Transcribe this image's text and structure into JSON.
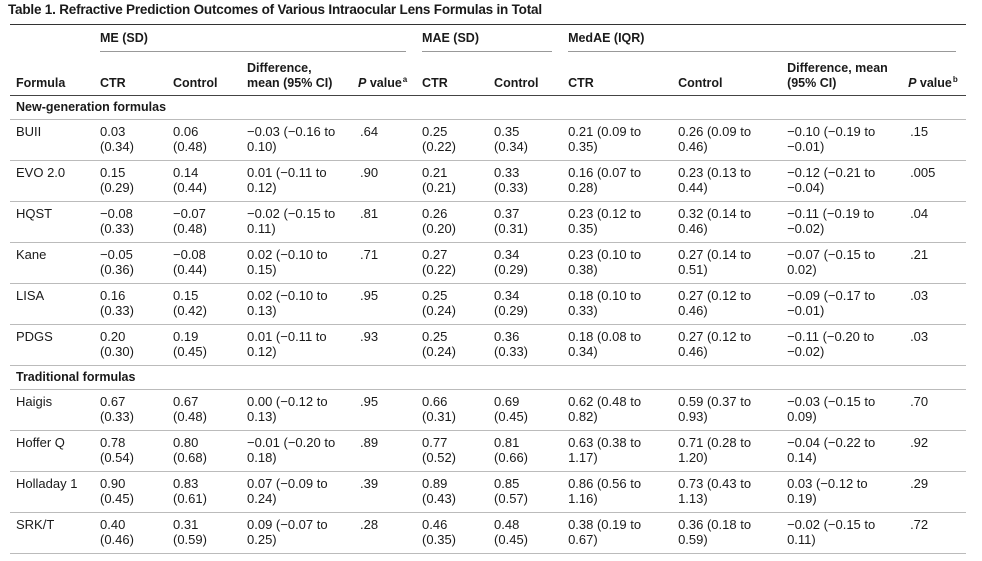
{
  "title": "Table 1. Refractive Prediction Outcomes of Various Intraocular Lens Formulas in Total",
  "table": {
    "groups": [
      "ME (SD)",
      "MAE (SD)",
      "MedAE (IQR)"
    ],
    "columns": [
      {
        "text": "Formula"
      },
      {
        "text": "CTR"
      },
      {
        "text": "Control"
      },
      {
        "text": "Difference, mean (95% CI)"
      },
      {
        "italic": "P",
        "text": "value",
        "sup": "a"
      },
      {
        "text": "CTR"
      },
      {
        "text": "Control"
      },
      {
        "text": "CTR"
      },
      {
        "text": "Control"
      },
      {
        "text": "Difference, mean (95% CI)"
      },
      {
        "italic": "P",
        "text": "value",
        "sup": "b"
      }
    ],
    "sections": [
      {
        "name": "New-generation formulas",
        "rows": [
          [
            "BUII",
            "0.03 (0.34)",
            "0.06 (0.48)",
            "−0.03 (−0.16 to 0.10)",
            ".64",
            "0.25 (0.22)",
            "0.35 (0.34)",
            "0.21 (0.09 to 0.35)",
            "0.26 (0.09 to 0.46)",
            "−0.10 (−0.19 to −0.01)",
            ".15"
          ],
          [
            "EVO 2.0",
            "0.15 (0.29)",
            "0.14 (0.44)",
            "0.01 (−0.11 to 0.12)",
            ".90",
            "0.21 (0.21)",
            "0.33 (0.33)",
            "0.16 (0.07 to 0.28)",
            "0.23 (0.13 to 0.44)",
            "−0.12 (−0.21 to −0.04)",
            ".005"
          ],
          [
            "HQST",
            "−0.08 (0.33)",
            "−0.07 (0.48)",
            "−0.02 (−0.15 to 0.11)",
            ".81",
            "0.26 (0.20)",
            "0.37 (0.31)",
            "0.23 (0.12 to 0.35)",
            "0.32 (0.14 to 0.46)",
            "−0.11 (−0.19 to −0.02)",
            ".04"
          ],
          [
            "Kane",
            "−0.05 (0.36)",
            "−0.08 (0.44)",
            "0.02 (−0.10 to 0.15)",
            ".71",
            "0.27 (0.22)",
            "0.34 (0.29)",
            "0.23 (0.10 to 0.38)",
            "0.27 (0.14 to 0.51)",
            "−0.07 (−0.15 to 0.02)",
            ".21"
          ],
          [
            "LISA",
            "0.16 (0.33)",
            "0.15 (0.42)",
            "0.02 (−0.10 to 0.13)",
            ".95",
            "0.25 (0.24)",
            "0.34 (0.29)",
            "0.18 (0.10 to 0.33)",
            "0.27 (0.12 to 0.46)",
            "−0.09 (−0.17 to −0.01)",
            ".03"
          ],
          [
            "PDGS",
            "0.20 (0.30)",
            "0.19 (0.45)",
            "0.01 (−0.11 to 0.12)",
            ".93",
            "0.25 (0.24)",
            "0.36 (0.33)",
            "0.18 (0.08 to 0.34)",
            "0.27 (0.12 to 0.46)",
            "−0.11 (−0.20 to −0.02)",
            ".03"
          ]
        ]
      },
      {
        "name": "Traditional formulas",
        "rows": [
          [
            "Haigis",
            "0.67 (0.33)",
            "0.67 (0.48)",
            "0.00 (−0.12 to 0.13)",
            ".95",
            "0.66 (0.31)",
            "0.69 (0.45)",
            "0.62 (0.48 to 0.82)",
            "0.59 (0.37 to 0.93)",
            "−0.03 (−0.15 to 0.09)",
            ".70"
          ],
          [
            "Hoffer Q",
            "0.78 (0.54)",
            "0.80 (0.68)",
            "−0.01 (−0.20 to 0.18)",
            ".89",
            "0.77 (0.52)",
            "0.81 (0.66)",
            "0.63 (0.38 to 1.17)",
            "0.71 (0.28 to 1.20)",
            "−0.04 (−0.22 to 0.14)",
            ".92"
          ],
          [
            "Holladay 1",
            "0.90 (0.45)",
            "0.83 (0.61)",
            "0.07 (−0.09 to 0.24)",
            ".39",
            "0.89 (0.43)",
            "0.85 (0.57)",
            "0.86 (0.56 to 1.16)",
            "0.73 (0.43 to 1.13)",
            "0.03 (−0.12 to 0.19)",
            ".29"
          ],
          [
            "SRK/T",
            "0.40 (0.46)",
            "0.31 (0.59)",
            "0.09 (−0.07 to 0.25)",
            ".28",
            "0.46 (0.35)",
            "0.48 (0.45)",
            "0.38 (0.19 to 0.67)",
            "0.36 (0.18 to 0.59)",
            "−0.02 (−0.15 to 0.11)",
            ".72"
          ]
        ]
      }
    ]
  }
}
